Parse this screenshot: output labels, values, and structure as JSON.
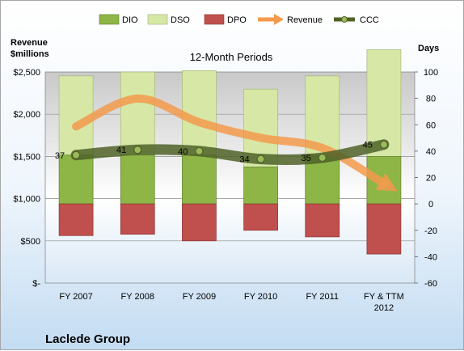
{
  "chart_data": {
    "type": "bar",
    "title": "12-Month Periods",
    "company": "Laclede Group",
    "y_left_label": [
      "Revenue",
      "$millions"
    ],
    "y_right_label": "Days",
    "categories": [
      [
        "FY 2007"
      ],
      [
        "FY 2008"
      ],
      [
        "FY 2009"
      ],
      [
        "FY 2010"
      ],
      [
        "FY 2011"
      ],
      [
        "FY & TTM",
        "2012"
      ]
    ],
    "y_left_ticks": [
      "$2,500",
      "$2,000",
      "$1,500",
      "$1,000",
      "$500",
      "$-"
    ],
    "y_left_lim": [
      0,
      2500
    ],
    "y_right_ticks": [
      "100",
      "80",
      "60",
      "40",
      "20",
      "0",
      "-20",
      "-40",
      "-60"
    ],
    "y_right_lim": [
      -60,
      100
    ],
    "legend": [
      "DIO",
      "DSO",
      "DPO",
      "Revenue",
      "CCC"
    ],
    "series": [
      {
        "name": "DIO",
        "axis": "right",
        "values": [
          37,
          37,
          37,
          28,
          37,
          36
        ]
      },
      {
        "name": "DSO",
        "axis": "right",
        "values": [
          60,
          63,
          64,
          59,
          60,
          81
        ]
      },
      {
        "name": "DPO",
        "axis": "right",
        "values": [
          -24,
          -23,
          -28,
          -20,
          -25,
          -38
        ]
      },
      {
        "name": "Revenue",
        "axis": "left",
        "values": [
          1855,
          2185,
          1905,
          1720,
          1600,
          1180
        ]
      },
      {
        "name": "CCC",
        "axis": "right",
        "values": [
          37,
          41,
          40,
          34,
          35,
          45
        ]
      }
    ],
    "ccc_labels": [
      "37",
      "41",
      "40",
      "34",
      "35",
      "45"
    ],
    "colors": {
      "DIO": "#8db647",
      "DSO": "#d7e8a6",
      "DPO": "#c0504d",
      "Revenue": "#f39a4c",
      "CCC": "#4f6228"
    },
    "grid": true
  }
}
